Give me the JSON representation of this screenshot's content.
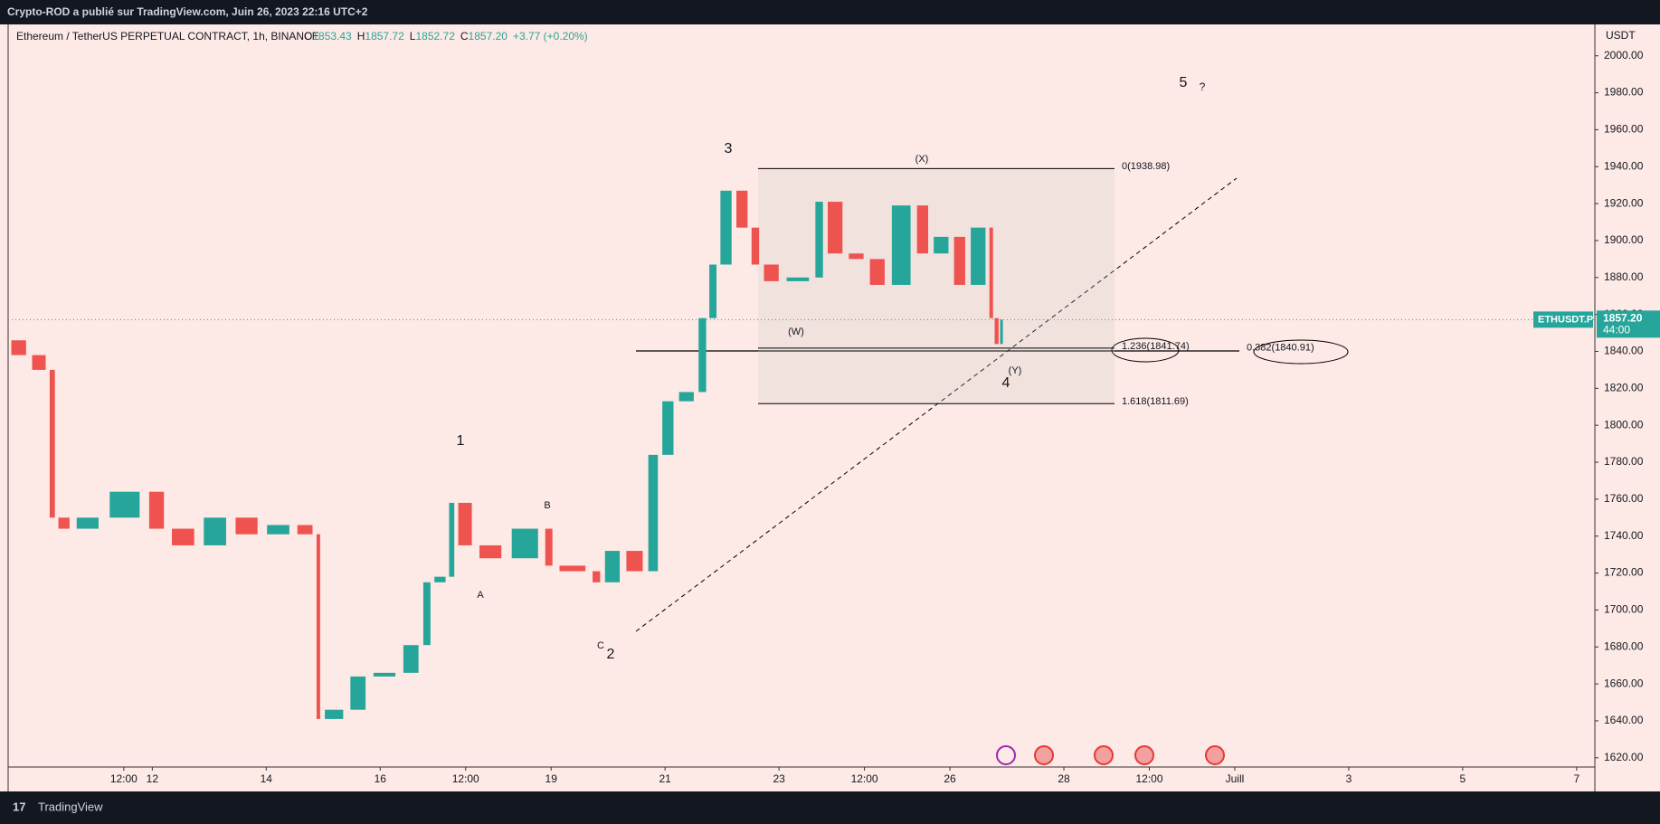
{
  "header": {
    "text": "Crypto-ROD a publié sur TradingView.com, Juin 26, 2023 22:16 UTC+2"
  },
  "legend": {
    "symbol": "Ethereum / TetherUS PERPETUAL CONTRACT, 1h, BINANCE",
    "ohlc": [
      [
        "O",
        "1853.43"
      ],
      [
        "H",
        "1857.72"
      ],
      [
        "L",
        "1852.72"
      ],
      [
        "C",
        "1857.20"
      ]
    ],
    "change": "+3.77 (+0.20%)"
  },
  "footer": {
    "brand": "TradingView"
  },
  "chart_data": {
    "type": "candlestick",
    "currency": "USDT",
    "symbol_tag": "ETHUSDT.P",
    "countdown": "44:00",
    "last_price": {
      "value": 1857.2,
      "label": "1857.20"
    },
    "x": [
      9.47,
      9.84,
      10.18,
      10.31,
      10.59,
      11.14,
      11.89,
      12.26,
      12.82,
      13.38,
      13.93,
      14.49,
      14.87,
      14.96,
      15.42,
      15.8,
      16.35,
      16.73,
      16.91,
      17.19,
      17.32,
      17.66,
      18.21,
      18.87,
      19.05,
      19.7,
      19.89,
      20.26,
      20.67,
      20.91,
      21.19,
      21.56,
      21.75,
      21.93,
      22.21,
      22.49,
      22.68,
      23.05,
      23.61,
      23.8,
      24.17,
      24.54,
      24.91,
      25.38,
      25.66,
      26.03,
      26.31,
      26.68,
      26.77,
      26.87,
      26.94
    ],
    "values": [
      1846,
      1838,
      1830,
      1750,
      1744,
      1750,
      1764,
      1744,
      1735,
      1750,
      1741,
      1746,
      1741,
      1641,
      1646,
      1664,
      1666,
      1681,
      1715,
      1718,
      1758,
      1735,
      1728,
      1744,
      1724,
      1721,
      1715,
      1732,
      1721,
      1784,
      1813,
      1818,
      1858,
      1887,
      1927,
      1907,
      1887,
      1878,
      1880,
      1921,
      1893,
      1890,
      1876,
      1919,
      1893,
      1902,
      1876,
      1907,
      1858,
      1844,
      1857.2
    ],
    "colors": {
      "up": "#26a69a",
      "down": "#ef5350"
    },
    "xlim": [
      9.47,
      37.32
    ],
    "ylim": [
      1615,
      2017
    ],
    "xticks": [
      {
        "value": 11.5,
        "label": "12:00"
      },
      12,
      14,
      16,
      {
        "value": 17.5,
        "label": "12:00"
      },
      19,
      21,
      23,
      {
        "value": 24.5,
        "label": "12:00"
      },
      26,
      28,
      {
        "value": 29.5,
        "label": "12:00"
      },
      {
        "value": 31,
        "label": "Juill"
      },
      {
        "value": 33,
        "label": "3"
      },
      {
        "value": 35,
        "label": "5"
      },
      {
        "value": 37,
        "label": "7"
      }
    ],
    "yticks": [
      {
        "value": 1620,
        "label": "1620.00"
      },
      {
        "value": 1640,
        "label": "1640.00"
      },
      {
        "value": 1660,
        "label": "1660.00"
      },
      {
        "value": 1680,
        "label": "1680.00"
      },
      {
        "value": 1700,
        "label": "1700.00"
      },
      {
        "value": 1720,
        "label": "1720.00"
      },
      {
        "value": 1740,
        "label": "1740.00"
      },
      {
        "value": 1760,
        "label": "1760.00"
      },
      {
        "value": 1780,
        "label": "1780.00"
      },
      {
        "value": 1800,
        "label": "1800.00"
      },
      {
        "value": 1820,
        "label": "1820.00"
      },
      {
        "value": 1840,
        "label": "1840.00"
      },
      {
        "value": 1860,
        "label": "1860.00"
      },
      {
        "value": 1880,
        "label": "1880.00"
      },
      {
        "value": 1900,
        "label": "1900.00"
      },
      {
        "value": 1920,
        "label": "1920.00"
      },
      {
        "value": 1940,
        "label": "1940.00"
      },
      {
        "value": 1960,
        "label": "1960.00"
      },
      {
        "value": 1980,
        "label": "1980.00"
      },
      {
        "value": 2000,
        "label": "2000.00"
      }
    ],
    "fib_levels": [
      {
        "value": 1938.98,
        "label": "0(1938.98)"
      },
      {
        "value": 1841.74,
        "label": "1.236(1841.74)"
      },
      {
        "value": 1811.69,
        "label": "1.618(1811.69)"
      },
      {
        "value": 1840.91,
        "label": "0.382(1840.91)"
      }
    ],
    "annotations": [
      "1",
      "2",
      "3",
      "4",
      "5",
      "?",
      "A",
      "B",
      "C",
      "(W)",
      "(X)",
      "(Y)"
    ]
  }
}
